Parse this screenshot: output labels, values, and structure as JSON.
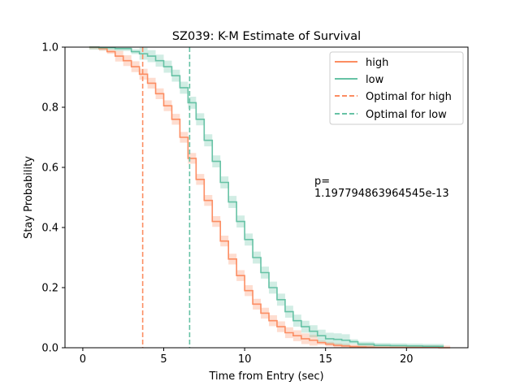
{
  "chart_data": {
    "type": "line",
    "title": "SZ039: K-M Estimate of Survival",
    "xlabel": "Time from Entry (sec)",
    "ylabel": "Stay Probability",
    "xlim": [
      -1.1,
      23.8
    ],
    "ylim": [
      0.0,
      1.0
    ],
    "xticks": [
      0,
      5,
      10,
      15,
      20
    ],
    "xtick_labels": [
      "0",
      "5",
      "10",
      "15",
      "20"
    ],
    "yticks": [
      0.0,
      0.2,
      0.4,
      0.6,
      0.8,
      1.0
    ],
    "ytick_labels": [
      "0.0",
      "0.2",
      "0.4",
      "0.6",
      "0.8",
      "1.0"
    ],
    "grid": false,
    "legend_position": "top-right",
    "annotation": {
      "line1": "p=",
      "line2": "1.197794863964545e-13"
    },
    "series": [
      {
        "name": "high",
        "color": "#fc8d62",
        "x": [
          0.4,
          1.0,
          1.5,
          2.0,
          2.5,
          3.0,
          3.5,
          4.0,
          4.5,
          5.0,
          5.5,
          6.0,
          6.5,
          7.0,
          7.5,
          8.0,
          8.5,
          9.0,
          9.5,
          10.0,
          10.5,
          11.0,
          11.5,
          12.0,
          12.5,
          13.0,
          13.5,
          14.0,
          14.5,
          15.0,
          15.5,
          16.0,
          16.5,
          17.0,
          17.5,
          18.0,
          19.0,
          20.0,
          21.0,
          22.0,
          22.7
        ],
        "y": [
          1.0,
          0.995,
          0.985,
          0.97,
          0.955,
          0.935,
          0.91,
          0.88,
          0.845,
          0.805,
          0.76,
          0.7,
          0.63,
          0.56,
          0.49,
          0.42,
          0.355,
          0.295,
          0.24,
          0.19,
          0.145,
          0.115,
          0.09,
          0.07,
          0.05,
          0.04,
          0.03,
          0.025,
          0.017,
          0.012,
          0.008,
          0.006,
          0.004,
          0.003,
          0.002,
          0.001,
          0.001,
          0.001,
          0.001,
          0.0,
          0.0
        ],
        "ci_halfwidth": 0.018
      },
      {
        "name": "low",
        "color": "#66c2a5",
        "x": [
          0.4,
          1.0,
          2.0,
          3.0,
          3.5,
          4.0,
          4.5,
          5.0,
          5.5,
          6.0,
          6.5,
          7.0,
          7.5,
          8.0,
          8.5,
          9.0,
          9.5,
          10.0,
          10.5,
          11.0,
          11.5,
          12.0,
          12.5,
          13.0,
          13.5,
          14.0,
          14.5,
          15.0,
          15.5,
          16.0,
          16.5,
          17.0,
          18.0,
          19.0,
          20.0,
          21.0,
          22.3
        ],
        "y": [
          1.0,
          0.998,
          0.995,
          0.985,
          0.978,
          0.97,
          0.955,
          0.935,
          0.905,
          0.865,
          0.815,
          0.76,
          0.69,
          0.62,
          0.55,
          0.485,
          0.42,
          0.36,
          0.3,
          0.25,
          0.2,
          0.16,
          0.12,
          0.09,
          0.07,
          0.055,
          0.04,
          0.03,
          0.028,
          0.025,
          0.02,
          0.012,
          0.008,
          0.007,
          0.006,
          0.005,
          0.005
        ],
        "ci_halfwidth": 0.02
      }
    ],
    "vlines": [
      {
        "name": "Optimal for high",
        "x": 3.7,
        "color": "#fc8d62",
        "style": "dashed"
      },
      {
        "name": "Optimal for low",
        "x": 6.6,
        "color": "#66c2a5",
        "style": "dashed"
      }
    ]
  }
}
